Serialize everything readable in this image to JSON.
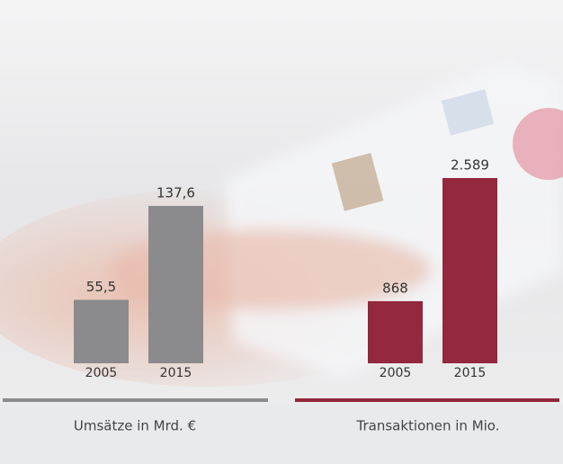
{
  "chart_data": [
    {
      "type": "bar",
      "categories": [
        "2005",
        "2015"
      ],
      "values": [
        55.5,
        137.6
      ],
      "value_labels": [
        "55,5",
        "137,6"
      ],
      "color": "#8b8b8d",
      "x_label": "Umsätze in Mrd. €"
    },
    {
      "type": "bar",
      "categories": [
        "2005",
        "2015"
      ],
      "values": [
        868,
        2589
      ],
      "value_labels": [
        "868",
        "2.589"
      ],
      "color": "#93283e",
      "x_label": "Transaktionen in Mio."
    }
  ]
}
